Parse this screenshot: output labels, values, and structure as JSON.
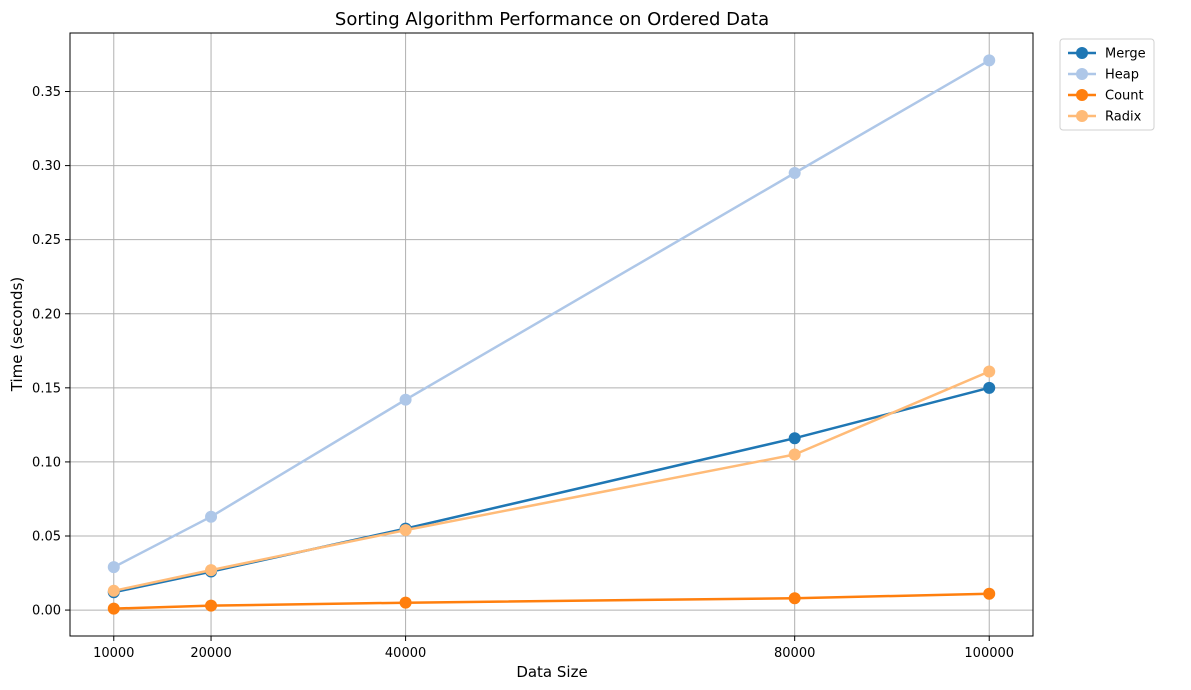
{
  "chart_data": {
    "type": "line",
    "title": "Sorting Algorithm Performance on Ordered Data",
    "xlabel": "Data Size",
    "ylabel": "Time (seconds)",
    "x": [
      10000,
      20000,
      40000,
      80000,
      100000
    ],
    "xticks": [
      "10000",
      "20000",
      "40000",
      "80000",
      "100000"
    ],
    "xlim": [
      5500,
      104500
    ],
    "ylim": [
      -0.0175,
      0.3895
    ],
    "yticks": [
      "0.00",
      "0.05",
      "0.10",
      "0.15",
      "0.20",
      "0.25",
      "0.30",
      "0.35"
    ],
    "ytick_values": [
      0,
      0.05,
      0.1,
      0.15,
      0.2,
      0.25,
      0.3,
      0.35
    ],
    "grid": true,
    "legend_position": "outside-top-right",
    "series": [
      {
        "name": "Merge",
        "color": "#1f77b4",
        "values": [
          0.012,
          0.026,
          0.055,
          0.116,
          0.15
        ]
      },
      {
        "name": "Heap",
        "color": "#aec7e8",
        "values": [
          0.029,
          0.063,
          0.142,
          0.295,
          0.371
        ]
      },
      {
        "name": "Count",
        "color": "#ff7f0e",
        "values": [
          0.001,
          0.003,
          0.005,
          0.008,
          0.011
        ]
      },
      {
        "name": "Radix",
        "color": "#ffbb78",
        "values": [
          0.013,
          0.027,
          0.054,
          0.105,
          0.161
        ]
      }
    ]
  }
}
